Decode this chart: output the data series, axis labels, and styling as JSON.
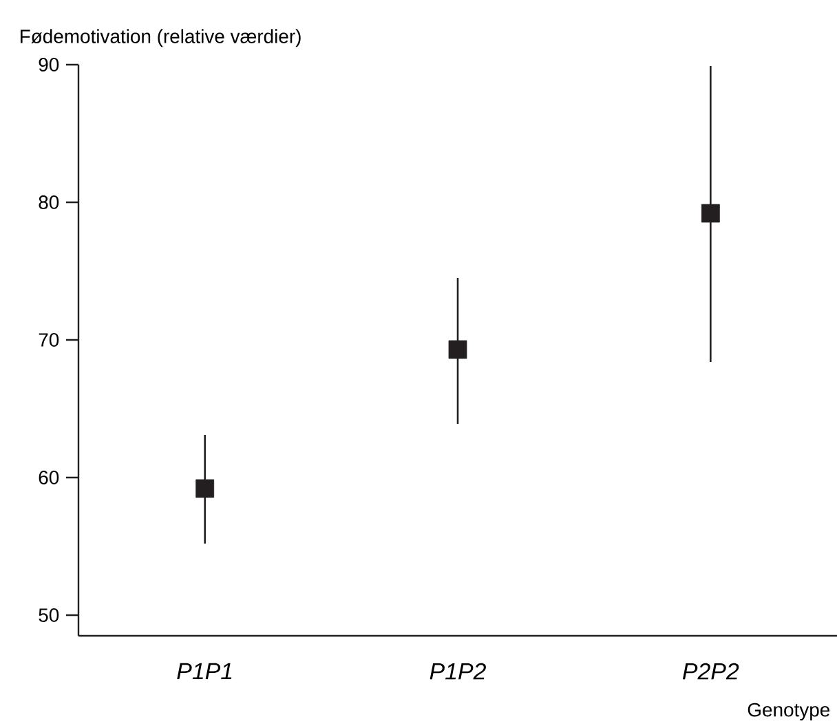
{
  "chart_data": {
    "type": "scatter",
    "ylabel": "Fødemotivation (relative værdier)",
    "xlabel": "Genotype",
    "categories": [
      "P1P1",
      "P1P2",
      "P2P2"
    ],
    "values": [
      59.2,
      69.3,
      79.2
    ],
    "errors": [
      [
        55.2,
        63.1
      ],
      [
        63.9,
        74.5
      ],
      [
        68.4,
        89.9
      ]
    ],
    "color": "#231f20",
    "marker": "square",
    "ylim": [
      48.5,
      90
    ],
    "yticks": [
      50,
      60,
      70,
      80,
      90
    ]
  }
}
